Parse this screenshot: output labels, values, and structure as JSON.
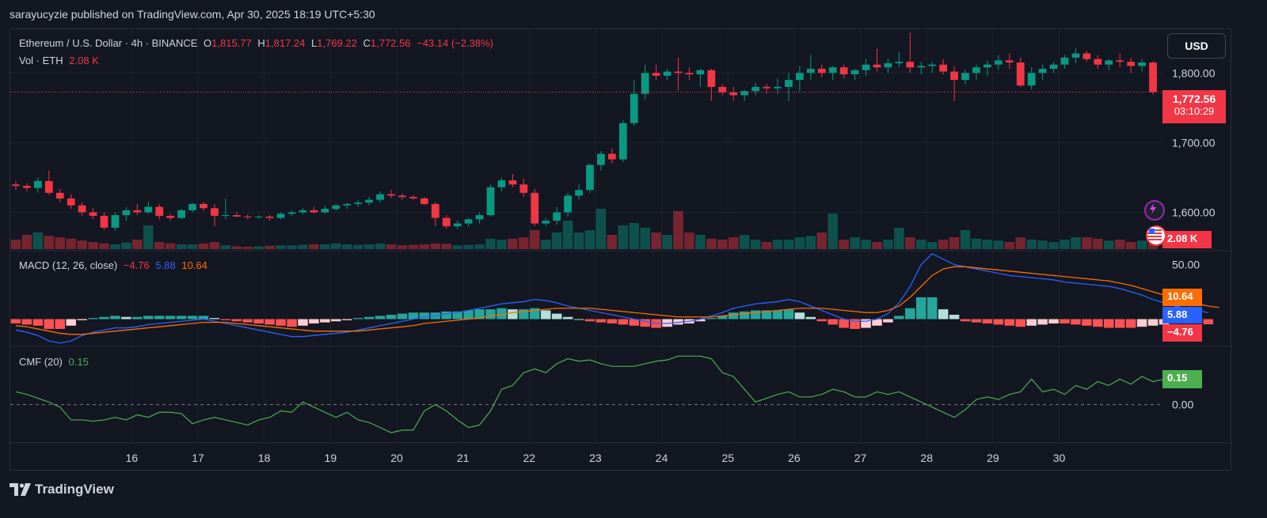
{
  "header": {
    "publisher": "sarayucyzie published on TradingView.com, Apr 30, 2025 18:19 UTC+5:30"
  },
  "legend": {
    "symbol": "Ethereum / U.S. Dollar · 4h · BINANCE",
    "o_label": "O",
    "o_value": "1,815.77",
    "h_label": "H",
    "h_value": "1,817.24",
    "l_label": "L",
    "l_value": "1,769.22",
    "c_label": "C",
    "c_value": "1,772.56",
    "change": "−43.14 (−2.38%)",
    "vol_label": "Vol · ETH",
    "vol_value": "2.08 K"
  },
  "macd_legend": {
    "label": "MACD (12, 26, close)",
    "hist": "−4.76",
    "macd": "5.88",
    "signal": "10.64"
  },
  "cmf_legend": {
    "label": "CMF (20)",
    "value": "0.15"
  },
  "currency_button": "USD",
  "price_tag": {
    "price": "1,772.56",
    "countdown": "03:10:29"
  },
  "vol_tag": "2.08 K",
  "macd_tags": {
    "signal": "10.64",
    "macd": "5.88",
    "hist": "−4.76"
  },
  "cmf_tag": "0.15",
  "footer": {
    "brand": "TradingView"
  },
  "colors": {
    "up": "#089981",
    "down": "#f23645",
    "macd": "#2962ff",
    "signal": "#ff6d00",
    "cmf": "#4caf50",
    "background": "#131722",
    "grid": "#1e222d"
  },
  "chart_data": [
    {
      "type": "candlestick",
      "title": "Ethereum / U.S. Dollar · 4h · BINANCE",
      "x_tick_labels": [
        "16",
        "17",
        "18",
        "19",
        "20",
        "21",
        "22",
        "23",
        "24",
        "25",
        "26",
        "27",
        "28",
        "29",
        "30"
      ],
      "y_tick_labels": [
        "1,600.00",
        "1,700.00",
        "1,800.00"
      ],
      "ylim": [
        1545,
        1840
      ],
      "current_price": 1772.56,
      "candles_ohlc": [
        [
          1640,
          1645,
          1632,
          1638
        ],
        [
          1638,
          1642,
          1630,
          1635
        ],
        [
          1635,
          1650,
          1628,
          1645
        ],
        [
          1645,
          1660,
          1625,
          1628
        ],
        [
          1628,
          1634,
          1615,
          1620
        ],
        [
          1620,
          1626,
          1605,
          1610
        ],
        [
          1610,
          1615,
          1595,
          1600
        ],
        [
          1600,
          1606,
          1590,
          1595
        ],
        [
          1595,
          1600,
          1575,
          1578
        ],
        [
          1578,
          1600,
          1574,
          1596
        ],
        [
          1596,
          1608,
          1588,
          1603
        ],
        [
          1603,
          1612,
          1596,
          1600
        ],
        [
          1600,
          1615,
          1598,
          1608
        ],
        [
          1608,
          1612,
          1590,
          1595
        ],
        [
          1595,
          1598,
          1588,
          1592
        ],
        [
          1592,
          1605,
          1590,
          1603
        ],
        [
          1603,
          1614,
          1600,
          1612
        ],
        [
          1612,
          1615,
          1602,
          1606
        ],
        [
          1606,
          1612,
          1580,
          1595
        ],
        [
          1595,
          1620,
          1590,
          1596
        ],
        [
          1596,
          1600,
          1593,
          1594
        ],
        [
          1594,
          1597,
          1590,
          1593
        ],
        [
          1593,
          1596,
          1591,
          1594
        ],
        [
          1594,
          1596,
          1588,
          1592
        ],
        [
          1592,
          1600,
          1590,
          1598
        ],
        [
          1598,
          1603,
          1595,
          1600
        ],
        [
          1600,
          1606,
          1597,
          1603
        ],
        [
          1603,
          1608,
          1598,
          1600
        ],
        [
          1600,
          1610,
          1598,
          1605
        ],
        [
          1605,
          1612,
          1602,
          1610
        ],
        [
          1610,
          1614,
          1605,
          1612
        ],
        [
          1612,
          1618,
          1608,
          1614
        ],
        [
          1614,
          1622,
          1610,
          1618
        ],
        [
          1618,
          1630,
          1614,
          1626
        ],
        [
          1626,
          1632,
          1620,
          1624
        ],
        [
          1624,
          1627,
          1618,
          1622
        ],
        [
          1622,
          1625,
          1618,
          1620
        ],
        [
          1620,
          1622,
          1610,
          1612
        ],
        [
          1612,
          1615,
          1580,
          1592
        ],
        [
          1592,
          1596,
          1576,
          1580
        ],
        [
          1580,
          1588,
          1576,
          1584
        ],
        [
          1584,
          1592,
          1580,
          1590
        ],
        [
          1590,
          1600,
          1584,
          1596
        ],
        [
          1596,
          1640,
          1594,
          1636
        ],
        [
          1636,
          1650,
          1630,
          1646
        ],
        [
          1646,
          1655,
          1636,
          1640
        ],
        [
          1640,
          1648,
          1622,
          1628
        ],
        [
          1628,
          1634,
          1580,
          1584
        ],
        [
          1584,
          1592,
          1580,
          1588
        ],
        [
          1588,
          1608,
          1582,
          1600
        ],
        [
          1600,
          1628,
          1594,
          1624
        ],
        [
          1624,
          1640,
          1618,
          1632
        ],
        [
          1632,
          1670,
          1628,
          1668
        ],
        [
          1668,
          1688,
          1660,
          1684
        ],
        [
          1684,
          1692,
          1670,
          1676
        ],
        [
          1676,
          1732,
          1672,
          1728
        ],
        [
          1728,
          1790,
          1724,
          1770
        ],
        [
          1770,
          1812,
          1762,
          1800
        ],
        [
          1800,
          1812,
          1790,
          1796
        ],
        [
          1796,
          1806,
          1790,
          1802
        ],
        [
          1802,
          1822,
          1775,
          1800
        ],
        [
          1800,
          1808,
          1790,
          1798
        ],
        [
          1798,
          1806,
          1780,
          1804
        ],
        [
          1804,
          1806,
          1760,
          1780
        ],
        [
          1780,
          1784,
          1768,
          1772
        ],
        [
          1772,
          1780,
          1760,
          1768
        ],
        [
          1768,
          1776,
          1760,
          1774
        ],
        [
          1774,
          1786,
          1768,
          1780
        ],
        [
          1780,
          1784,
          1770,
          1778
        ],
        [
          1778,
          1792,
          1770,
          1780
        ],
        [
          1780,
          1800,
          1760,
          1790
        ],
        [
          1790,
          1810,
          1774,
          1800
        ],
        [
          1800,
          1826,
          1790,
          1806
        ],
        [
          1806,
          1812,
          1794,
          1800
        ],
        [
          1800,
          1810,
          1790,
          1808
        ],
        [
          1808,
          1812,
          1792,
          1798
        ],
        [
          1798,
          1806,
          1790,
          1804
        ],
        [
          1804,
          1820,
          1796,
          1812
        ],
        [
          1812,
          1835,
          1802,
          1808
        ],
        [
          1808,
          1820,
          1800,
          1814
        ],
        [
          1814,
          1830,
          1808,
          1816
        ],
        [
          1816,
          1858,
          1800,
          1808
        ],
        [
          1808,
          1816,
          1798,
          1810
        ],
        [
          1810,
          1816,
          1800,
          1812
        ],
        [
          1812,
          1820,
          1798,
          1802
        ],
        [
          1802,
          1810,
          1760,
          1790
        ],
        [
          1790,
          1805,
          1784,
          1800
        ],
        [
          1800,
          1812,
          1790,
          1808
        ],
        [
          1808,
          1818,
          1796,
          1812
        ],
        [
          1812,
          1826,
          1804,
          1818
        ],
        [
          1818,
          1828,
          1806,
          1815
        ],
        [
          1815,
          1822,
          1780,
          1782
        ],
        [
          1782,
          1808,
          1776,
          1800
        ],
        [
          1800,
          1812,
          1790,
          1806
        ],
        [
          1806,
          1816,
          1800,
          1812
        ],
        [
          1812,
          1826,
          1806,
          1822
        ],
        [
          1822,
          1836,
          1814,
          1828
        ],
        [
          1828,
          1832,
          1816,
          1820
        ],
        [
          1820,
          1826,
          1806,
          1812
        ],
        [
          1812,
          1820,
          1804,
          1818
        ],
        [
          1818,
          1828,
          1808,
          1816
        ],
        [
          1816,
          1822,
          1800,
          1810
        ],
        [
          1810,
          1820,
          1802,
          1815
        ],
        [
          1815,
          1817,
          1769,
          1772.56
        ]
      ],
      "volume_relative": [
        0.2,
        0.3,
        0.35,
        0.28,
        0.25,
        0.22,
        0.18,
        0.15,
        0.12,
        0.1,
        0.14,
        0.2,
        0.5,
        0.15,
        0.12,
        0.1,
        0.1,
        0.12,
        0.15,
        0.08,
        0.06,
        0.05,
        0.06,
        0.07,
        0.08,
        0.08,
        0.09,
        0.1,
        0.1,
        0.12,
        0.1,
        0.09,
        0.1,
        0.12,
        0.1,
        0.08,
        0.09,
        0.1,
        0.12,
        0.11,
        0.08,
        0.09,
        0.1,
        0.22,
        0.2,
        0.22,
        0.25,
        0.4,
        0.2,
        0.35,
        0.6,
        0.35,
        0.4,
        0.85,
        0.3,
        0.5,
        0.55,
        0.45,
        0.35,
        0.3,
        0.8,
        0.35,
        0.3,
        0.22,
        0.2,
        0.25,
        0.3,
        0.2,
        0.15,
        0.2,
        0.2,
        0.25,
        0.28,
        0.35,
        0.75,
        0.2,
        0.25,
        0.2,
        0.15,
        0.2,
        0.45,
        0.25,
        0.2,
        0.15,
        0.2,
        0.25,
        0.4,
        0.22,
        0.2,
        0.18,
        0.15,
        0.25,
        0.2,
        0.18,
        0.15,
        0.2,
        0.25,
        0.25,
        0.22,
        0.18,
        0.2,
        0.15,
        0.18,
        0.12,
        0.15,
        0.16,
        0.14,
        0.18
      ]
    },
    {
      "type": "line",
      "title": "MACD (12, 26, close)",
      "y_tick_labels": [
        "50.00"
      ],
      "series": [
        {
          "name": "MACD",
          "values": [
            -10,
            -12,
            -15,
            -20,
            -22,
            -20,
            -15,
            -12,
            -10,
            -8,
            -8,
            -7,
            -5,
            -4,
            -3,
            -2,
            -1,
            0,
            -2,
            -4,
            -6,
            -8,
            -10,
            -12,
            -14,
            -16,
            -16,
            -15,
            -14,
            -13,
            -12,
            -10,
            -8,
            -6,
            -4,
            -2,
            0,
            2,
            3,
            5,
            6,
            8,
            10,
            12,
            14,
            15,
            16,
            18,
            17,
            15,
            12,
            10,
            8,
            6,
            4,
            2,
            0,
            -2,
            -4,
            -4,
            -3,
            -2,
            0,
            3,
            6,
            10,
            12,
            14,
            15,
            16,
            18,
            16,
            12,
            8,
            4,
            0,
            -2,
            -2,
            0,
            5,
            15,
            30,
            50,
            60,
            55,
            50,
            48,
            46,
            44,
            42,
            40,
            39,
            38,
            37,
            36,
            34,
            33,
            32,
            31,
            30,
            28,
            25,
            22,
            18,
            15,
            12,
            10,
            8,
            5.88
          ]
        },
        {
          "name": "Signal",
          "values": [
            -6,
            -7,
            -9,
            -11,
            -13,
            -14,
            -14,
            -13,
            -12,
            -11,
            -10,
            -9,
            -8,
            -7,
            -6,
            -5,
            -4,
            -3,
            -3,
            -3,
            -4,
            -5,
            -6,
            -7,
            -8,
            -9,
            -10,
            -11,
            -11,
            -11,
            -11,
            -11,
            -10,
            -9,
            -8,
            -7,
            -6,
            -4,
            -3,
            -2,
            -1,
            0,
            1,
            3,
            4,
            6,
            7,
            8,
            9,
            10,
            10,
            10,
            10,
            9,
            8,
            7,
            6,
            5,
            4,
            3,
            2,
            2,
            2,
            2,
            3,
            4,
            5,
            6,
            7,
            8,
            9,
            10,
            10,
            10,
            9,
            8,
            7,
            6,
            6,
            8,
            12,
            20,
            30,
            40,
            46,
            48,
            48,
            47,
            46,
            45,
            44,
            43,
            42,
            41,
            40,
            39,
            38,
            37,
            36,
            35,
            33,
            31,
            28,
            25,
            22,
            19,
            16,
            14,
            12,
            10.64
          ]
        }
      ],
      "histogram": [
        -4,
        -5,
        -6,
        -9,
        -9,
        -6,
        -1,
        1,
        2,
        3,
        2,
        2,
        3,
        3,
        3,
        3,
        3,
        3,
        1,
        -1,
        -2,
        -3,
        -4,
        -5,
        -6,
        -7,
        -6,
        -4,
        -3,
        -2,
        -1,
        1,
        2,
        3,
        4,
        5,
        6,
        6,
        6,
        7,
        7,
        8,
        9,
        9,
        10,
        9,
        9,
        10,
        8,
        5,
        2,
        0,
        -2,
        -3,
        -4,
        -5,
        -6,
        -7,
        -8,
        -7,
        -5,
        -4,
        -2,
        1,
        3,
        6,
        7,
        8,
        8,
        8,
        9,
        6,
        2,
        -2,
        -5,
        -8,
        -9,
        -8,
        -6,
        -3,
        3,
        10,
        20,
        20,
        9,
        4,
        -2,
        -3,
        -4,
        -5,
        -6,
        -7,
        -6,
        -5,
        -4,
        -4,
        -5,
        -6,
        -7,
        -8,
        -8,
        -8,
        -7,
        -6,
        -5,
        -4,
        -3,
        -4,
        -4.76
      ]
    },
    {
      "type": "line",
      "title": "CMF (20)",
      "y_tick_labels": [
        "0.00"
      ],
      "series": [
        {
          "name": "CMF",
          "values": [
            0.1,
            0.08,
            0.05,
            0.02,
            -0.02,
            -0.12,
            -0.12,
            -0.13,
            -0.12,
            -0.1,
            -0.12,
            -0.08,
            -0.1,
            -0.06,
            -0.06,
            -0.07,
            -0.15,
            -0.12,
            -0.1,
            -0.12,
            -0.14,
            -0.16,
            -0.12,
            -0.1,
            -0.05,
            -0.06,
            0.02,
            -0.02,
            -0.06,
            -0.1,
            -0.06,
            -0.12,
            -0.14,
            -0.18,
            -0.22,
            -0.2,
            -0.2,
            -0.05,
            0.0,
            -0.05,
            -0.12,
            -0.18,
            -0.16,
            -0.05,
            0.12,
            0.15,
            0.25,
            0.28,
            0.25,
            0.32,
            0.36,
            0.34,
            0.35,
            0.32,
            0.3,
            0.3,
            0.3,
            0.32,
            0.34,
            0.35,
            0.38,
            0.38,
            0.38,
            0.36,
            0.25,
            0.22,
            0.12,
            0.02,
            0.05,
            0.08,
            0.1,
            0.06,
            0.06,
            0.08,
            0.12,
            0.1,
            0.06,
            0.06,
            0.1,
            0.08,
            0.1,
            0.06,
            0.02,
            -0.02,
            -0.06,
            -0.1,
            -0.04,
            0.04,
            0.06,
            0.04,
            0.08,
            0.1,
            0.2,
            0.1,
            0.12,
            0.08,
            0.15,
            0.12,
            0.18,
            0.15,
            0.2,
            0.16,
            0.22,
            0.18,
            0.2,
            0.16,
            0.18,
            0.15
          ]
        }
      ]
    }
  ]
}
